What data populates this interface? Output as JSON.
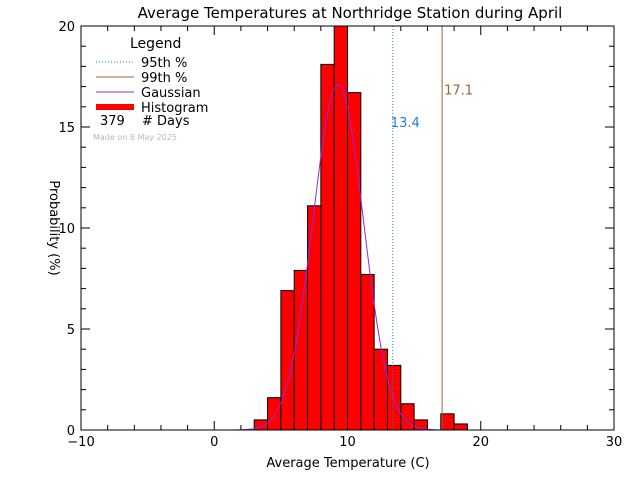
{
  "chart_data": {
    "type": "bar",
    "title": "Average Temperatures at Northridge Station during April",
    "xlabel": "Average Temperature (C)",
    "ylabel": "Probability (%)",
    "xlim": [
      -10,
      30
    ],
    "ylim": [
      0,
      20
    ],
    "x_ticks": [
      "−10",
      "0",
      "10",
      "20",
      "30"
    ],
    "y_ticks": [
      "0",
      "5",
      "10",
      "15",
      "20"
    ],
    "bin_width": 1,
    "bins": [
      {
        "x": 3,
        "y": 0.5
      },
      {
        "x": 4,
        "y": 1.6
      },
      {
        "x": 5,
        "y": 6.9
      },
      {
        "x": 6,
        "y": 7.9
      },
      {
        "x": 7,
        "y": 11.1
      },
      {
        "x": 8,
        "y": 18.1
      },
      {
        "x": 9,
        "y": 20.0
      },
      {
        "x": 10,
        "y": 16.7
      },
      {
        "x": 11,
        "y": 7.7
      },
      {
        "x": 12,
        "y": 4.0
      },
      {
        "x": 13,
        "y": 3.2
      },
      {
        "x": 14,
        "y": 1.3
      },
      {
        "x": 15,
        "y": 0.5
      },
      {
        "x": 16,
        "y": 0.0
      },
      {
        "x": 17,
        "y": 0.8
      },
      {
        "x": 18,
        "y": 0.3
      }
    ],
    "gaussian": {
      "mean": 9.3,
      "peak": 17.1,
      "sd": 1.9,
      "color": "#8a2be2"
    },
    "percentile_95": {
      "value": 13.4,
      "label": "13.4",
      "color": "#1a7fd0"
    },
    "percentile_99": {
      "value": 17.1,
      "label": "17.1",
      "color": "#a0622d"
    },
    "legend": {
      "title": "Legend",
      "items": [
        {
          "label": "95th %",
          "style": "dotted",
          "color": "#1a7fd0"
        },
        {
          "label": "99th %",
          "style": "solid",
          "color": "#a0622d"
        },
        {
          "label": "Gaussian",
          "style": "solid",
          "color": "#8a2be2"
        },
        {
          "label": "Histogram",
          "style": "thick",
          "color": "#ff0000"
        }
      ],
      "count_value": "379",
      "count_label": "# Days"
    },
    "made_on": "Made on 8 May 2025",
    "histogram_color": "#ff0000"
  }
}
